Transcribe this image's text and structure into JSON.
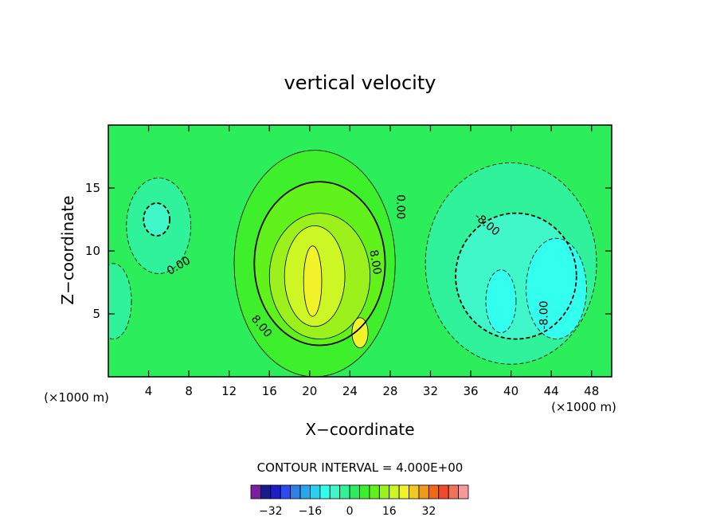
{
  "chart_data": {
    "type": "heatmap",
    "title": "vertical velocity",
    "xlabel": "X−coordinate",
    "ylabel": "Z−coordinate",
    "x_unit_left": "(×1000 m)",
    "x_unit_right": "(×1000 m)",
    "xlim": [
      0,
      50
    ],
    "ylim": [
      0,
      20
    ],
    "xticks": [
      4,
      8,
      12,
      16,
      20,
      24,
      28,
      32,
      36,
      40,
      44,
      48
    ],
    "yticks": [
      5,
      10,
      15
    ],
    "contour_interval_text": "CONTOUR INTERVAL = 4.000E+00",
    "contour_labels": [
      {
        "text": "0.00",
        "x": 7.0,
        "y": 8.8,
        "angle": -30
      },
      {
        "text": "0.00",
        "x": 29.0,
        "y": 13.5,
        "angle": 90
      },
      {
        "text": "8.00",
        "x": 26.5,
        "y": 9.1,
        "angle": 80
      },
      {
        "text": "8.00",
        "x": 15.2,
        "y": 4.0,
        "angle": 50
      },
      {
        "text": "-8.00",
        "x": 37.6,
        "y": 12.1,
        "angle": 40
      },
      {
        "text": "-8.00",
        "x": 43.3,
        "y": 4.9,
        "angle": -90
      }
    ],
    "colorbar": {
      "colors": [
        "#7a1fa2",
        "#1a1a90",
        "#1e1ec8",
        "#2d4bef",
        "#2f7fe8",
        "#29a6ee",
        "#2cd0f0",
        "#33ffee",
        "#3ff7c8",
        "#30f29a",
        "#2ced5a",
        "#3ef02c",
        "#60f21a",
        "#9cf01c",
        "#cdf724",
        "#f2f22a",
        "#f0ca23",
        "#f09a1a",
        "#f06a14",
        "#f04a2b",
        "#f0735a",
        "#f59a9a"
      ],
      "tick_labels": [
        "−32",
        "−16",
        "0",
        "16",
        "32"
      ],
      "tick_values": [
        -32,
        -16,
        0,
        16,
        32
      ]
    },
    "regions": [
      {
        "value": 4,
        "cx": 20.5,
        "cy": 9.0,
        "rx": 8.0,
        "ry": 9.0
      },
      {
        "value": 8,
        "cx": 21.0,
        "cy": 9.0,
        "rx": 6.5,
        "ry": 6.5
      },
      {
        "value": 12,
        "cx": 21.0,
        "cy": 8.0,
        "rx": 5.0,
        "ry": 5.0
      },
      {
        "value": 16,
        "cx": 20.5,
        "cy": 8.0,
        "rx": 3.0,
        "ry": 4.0
      },
      {
        "value": 20,
        "cx": 20.3,
        "cy": 7.6,
        "rx": 0.9,
        "ry": 2.8
      },
      {
        "value": 20,
        "cx": 25.0,
        "cy": 3.5,
        "rx": 0.8,
        "ry": 1.2
      },
      {
        "value": -4,
        "cx": 40.0,
        "cy": 9.0,
        "rx": 8.5,
        "ry": 8.0
      },
      {
        "value": -8,
        "cx": 40.5,
        "cy": 8.0,
        "rx": 6.0,
        "ry": 5.0
      },
      {
        "value": -12,
        "cx": 44.5,
        "cy": 7.0,
        "rx": 3.0,
        "ry": 4.0
      },
      {
        "value": -12,
        "cx": 39.0,
        "cy": 6.0,
        "rx": 1.5,
        "ry": 2.5
      },
      {
        "value": -4,
        "cx": 5.0,
        "cy": 12.0,
        "rx": 3.2,
        "ry": 3.8
      },
      {
        "value": -8,
        "cx": 4.8,
        "cy": 12.5,
        "rx": 1.3,
        "ry": 1.3
      },
      {
        "value": -4,
        "cx": 0.5,
        "cy": 6.0,
        "rx": 1.8,
        "ry": 3.0
      }
    ]
  }
}
